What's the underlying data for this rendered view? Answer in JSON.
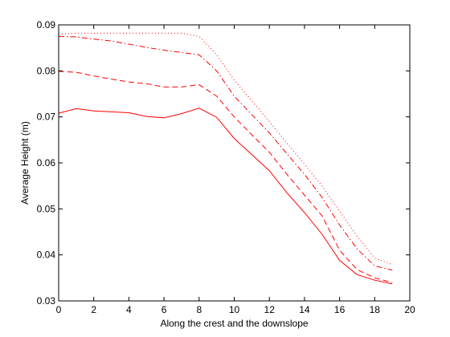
{
  "chart_data": {
    "type": "line",
    "title": "",
    "xlabel": "Along the crest and the downslope",
    "ylabel": "Average Height (m)",
    "xlim": [
      0,
      20
    ],
    "ylim": [
      0.03,
      0.09
    ],
    "xticks": [
      0,
      2,
      4,
      6,
      8,
      10,
      12,
      14,
      16,
      18,
      20
    ],
    "yticks": [
      0.03,
      0.04,
      0.05,
      0.06,
      0.07,
      0.08,
      0.09
    ],
    "xtick_labels": [
      "0",
      "2",
      "4",
      "6",
      "8",
      "10",
      "12",
      "14",
      "16",
      "18",
      "20"
    ],
    "ytick_labels": [
      "0.03",
      "0.04",
      "0.05",
      "0.06",
      "0.07",
      "0.08",
      "0.09"
    ],
    "grid": false,
    "legend": "none",
    "x": [
      0,
      1,
      2,
      3,
      4,
      5,
      6,
      7,
      8,
      9,
      10,
      11,
      12,
      13,
      14,
      15,
      16,
      17,
      18,
      19
    ],
    "series": [
      {
        "style": "solid",
        "color": "#ff0000",
        "values": [
          0.0708,
          0.0718,
          0.0713,
          0.0711,
          0.0709,
          0.0701,
          0.0698,
          0.0707,
          0.0719,
          0.0699,
          0.0653,
          0.0618,
          0.0583,
          0.0535,
          0.0492,
          0.0445,
          0.0388,
          0.0357,
          0.0345,
          0.0337
        ]
      },
      {
        "style": "dashed",
        "color": "#ff0000",
        "values": [
          0.0799,
          0.0797,
          0.0789,
          0.0782,
          0.0776,
          0.0772,
          0.0765,
          0.0765,
          0.077,
          0.0745,
          0.07,
          0.0661,
          0.0623,
          0.0575,
          0.053,
          0.0485,
          0.041,
          0.0368,
          0.035,
          0.034
        ]
      },
      {
        "style": "dashdot",
        "color": "#ff0000",
        "values": [
          0.0875,
          0.0874,
          0.0869,
          0.0865,
          0.0858,
          0.0851,
          0.0845,
          0.084,
          0.0835,
          0.08,
          0.0745,
          0.0705,
          0.0665,
          0.062,
          0.0575,
          0.0525,
          0.0465,
          0.0413,
          0.0376,
          0.0367
        ]
      },
      {
        "style": "dotted",
        "color": "#ff0000",
        "values": [
          0.088,
          0.0882,
          0.0882,
          0.0882,
          0.0882,
          0.0882,
          0.0882,
          0.0882,
          0.0875,
          0.0835,
          0.078,
          0.0735,
          0.069,
          0.0643,
          0.0597,
          0.055,
          0.0495,
          0.044,
          0.0393,
          0.0379
        ]
      }
    ]
  }
}
